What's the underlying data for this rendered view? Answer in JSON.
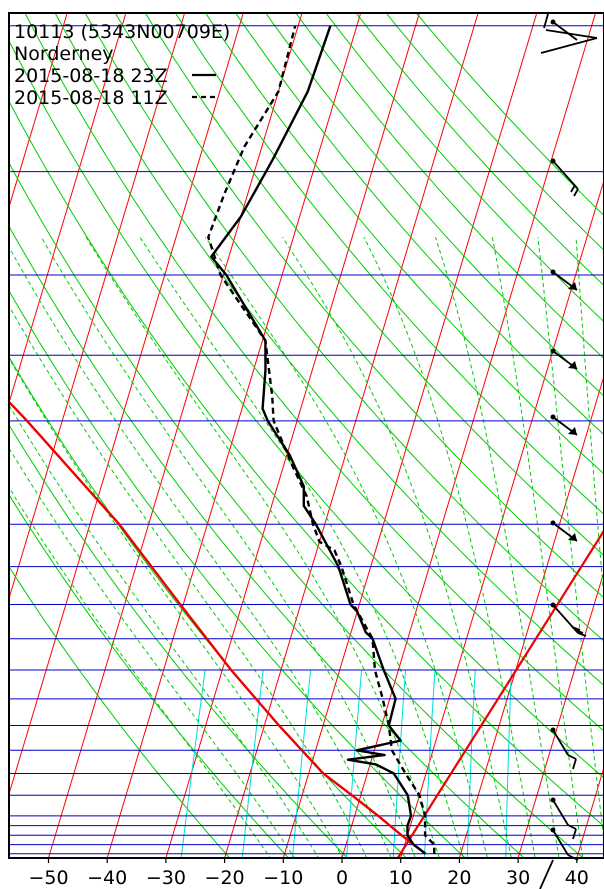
{
  "chart_data": {
    "type": "line",
    "title": "",
    "xlabel": "",
    "ylabel": "",
    "x_ticks": [
      -50,
      -40,
      -30,
      -20,
      -10,
      0,
      10,
      20,
      30,
      40
    ],
    "xlim": [
      -50,
      40
    ],
    "station": {
      "id_line": "10113 (5343N00709E)",
      "name": "Norderney"
    },
    "legend": [
      {
        "label": "2015-08-18 23Z",
        "style": "solid",
        "color": "#000000"
      },
      {
        "label": "2015-08-18 11Z",
        "style": "dashed",
        "color": "#000000"
      }
    ],
    "pressure_levels_hpa": [
      1000,
      975,
      950,
      925,
      900,
      850,
      800,
      750,
      700,
      650,
      600,
      550,
      500,
      450,
      400,
      300,
      250,
      200,
      150,
      100
    ],
    "series": [
      {
        "name": "2015-08-18 23Z",
        "style": "solid",
        "profile": [
          [
            1000,
            14.0
          ],
          [
            975,
            11.5
          ],
          [
            950,
            10.0
          ],
          [
            925,
            9.5
          ],
          [
            900,
            9.6
          ],
          [
            850,
            8.0
          ],
          [
            800,
            4.5
          ],
          [
            780,
            1.0
          ],
          [
            770,
            -4.0
          ],
          [
            760,
            2.0
          ],
          [
            750,
            -3.0
          ],
          [
            730,
            4.0
          ],
          [
            700,
            1.2
          ],
          [
            650,
            1.0
          ],
          [
            600,
            -2.5
          ],
          [
            550,
            -6.0
          ],
          [
            540,
            -7.5
          ],
          [
            510,
            -10.0
          ],
          [
            500,
            -11.5
          ],
          [
            450,
            -15.5
          ],
          [
            400,
            -21.5
          ],
          [
            380,
            -24.5
          ],
          [
            360,
            -25.5
          ],
          [
            330,
            -29.5
          ],
          [
            300,
            -35.0
          ],
          [
            290,
            -36.5
          ],
          [
            260,
            -38.0
          ],
          [
            240,
            -39.5
          ],
          [
            200,
            -49.5
          ],
          [
            190,
            -53.0
          ],
          [
            170,
            -50.0
          ],
          [
            145,
            -47.5
          ],
          [
            120,
            -45.0
          ],
          [
            100,
            -44.5
          ]
        ]
      },
      {
        "name": "2015-08-18 11Z",
        "style": "dashed",
        "profile": [
          [
            1000,
            15.5
          ],
          [
            975,
            15.0
          ],
          [
            950,
            13.0
          ],
          [
            925,
            12.5
          ],
          [
            900,
            12.0
          ],
          [
            850,
            10.0
          ],
          [
            800,
            6.5
          ],
          [
            750,
            3.0
          ],
          [
            700,
            1.2
          ],
          [
            650,
            -1.2
          ],
          [
            600,
            -4.0
          ],
          [
            550,
            -6.0
          ],
          [
            500,
            -11.0
          ],
          [
            450,
            -15.0
          ],
          [
            430,
            -17.0
          ],
          [
            420,
            -20.0
          ],
          [
            400,
            -22.0
          ],
          [
            370,
            -24.5
          ],
          [
            340,
            -28.5
          ],
          [
            300,
            -34.0
          ],
          [
            280,
            -35.5
          ],
          [
            240,
            -39.5
          ],
          [
            200,
            -50.5
          ],
          [
            180,
            -54.5
          ],
          [
            160,
            -54.0
          ],
          [
            140,
            -53.0
          ],
          [
            120,
            -50.0
          ],
          [
            100,
            -50.5
          ]
        ]
      }
    ],
    "parcel_path": [
      [
        1000,
        14.0
      ],
      [
        950,
        9.0
      ],
      [
        900,
        4.0
      ],
      [
        850,
        -1.5
      ],
      [
        800,
        -7.5
      ],
      [
        700,
        -17.5
      ],
      [
        600,
        -28.5
      ],
      [
        500,
        -40.5
      ],
      [
        400,
        -55.0
      ],
      [
        300,
        -76.0
      ],
      [
        250,
        -90.0
      ],
      [
        200,
        -103.0
      ],
      [
        150,
        -112.0
      ],
      [
        100,
        -125.0
      ]
    ],
    "wind_barbs": [
      {
        "level": "upper",
        "style": "flags"
      },
      {
        "level": 200,
        "style": "two-barbs"
      },
      {
        "level": 300,
        "style": "flag"
      },
      {
        "level": 400,
        "style": "flag"
      },
      {
        "level": 500,
        "style": "flag"
      },
      {
        "level": 600,
        "style": "flag"
      },
      {
        "level": 700,
        "style": "three-barbs"
      },
      {
        "level": 850,
        "style": "barbs"
      },
      {
        "level": 950,
        "style": "barbs"
      },
      {
        "level": 975,
        "style": "barb"
      }
    ],
    "colors": {
      "isobar": "#0000cc",
      "isotherm": "#ff0000",
      "dry_adiabat": "#00cc00",
      "moist_adiabat": "#00cc00",
      "mixing_ratio": "#00dddd",
      "parcel": "#ee0000",
      "sounding": "#000000"
    },
    "grid": true
  }
}
